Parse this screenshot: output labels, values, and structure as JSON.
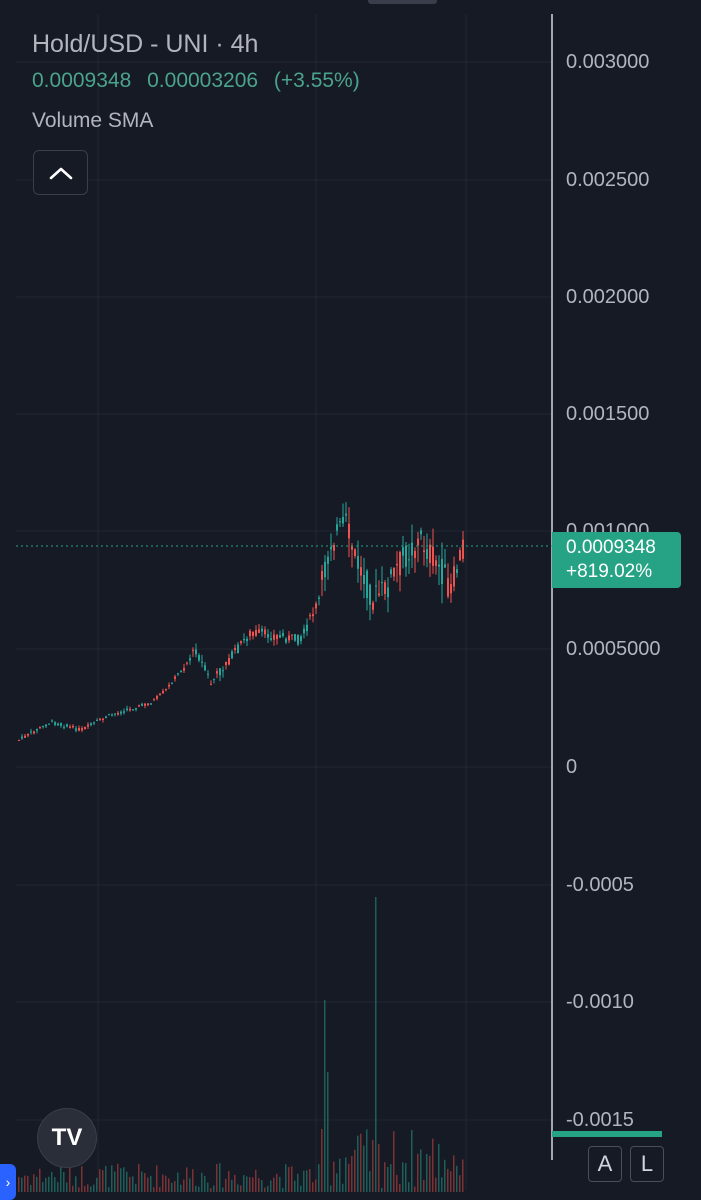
{
  "legend": {
    "title": "Hold/USD - UNI · 4h",
    "last_price": "0.0009348",
    "change": "0.00003206",
    "change_pct": "(+3.55%)",
    "study": "Volume SMA"
  },
  "price_label": {
    "price": "0.0009348",
    "change": "+819.02%"
  },
  "axis": {
    "ticks": [
      "0.003000",
      "0.002500",
      "0.002000",
      "0.001500",
      "0.001000",
      "0.0005000",
      "0",
      "-0.0005",
      "-0.0010",
      "-0.0015"
    ]
  },
  "controls": {
    "collapse_icon": "chevron-up-icon",
    "logo": "TV",
    "auto_scale": "A",
    "log_scale": "L",
    "handle": "›"
  },
  "colors": {
    "background": "#161a25",
    "up": "#26a69a",
    "down": "#ef5350",
    "accent": "#26a385"
  }
}
